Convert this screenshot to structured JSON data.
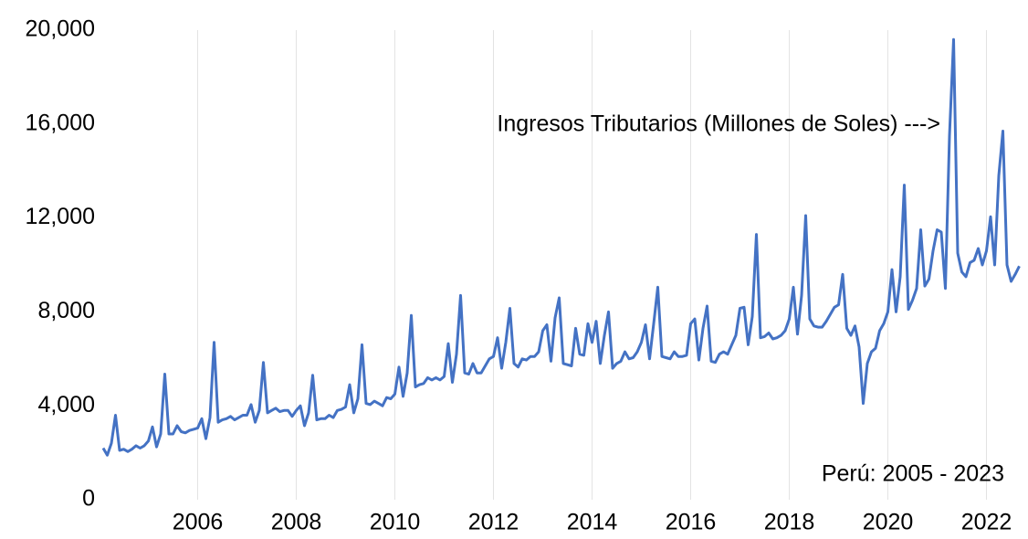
{
  "chart_data": {
    "type": "line",
    "annotations": [
      "Ingresos Tributarios (Millones de Soles) --->",
      "Perú: 2005 - 2023"
    ],
    "categories": [
      null,
      null,
      null,
      null,
      null,
      null,
      null,
      null,
      null,
      null,
      null,
      null,
      null,
      null,
      null,
      null,
      null,
      null,
      null,
      null,
      null,
      null,
      null,
      "2006",
      null,
      null,
      null,
      null,
      null,
      null,
      null,
      null,
      null,
      null,
      null,
      null,
      null,
      null,
      null,
      null,
      null,
      null,
      null,
      null,
      null,
      null,
      null,
      "2008",
      null,
      null,
      null,
      null,
      null,
      null,
      null,
      null,
      null,
      null,
      null,
      null,
      null,
      null,
      null,
      null,
      null,
      null,
      null,
      null,
      null,
      null,
      null,
      "2010",
      null,
      null,
      null,
      null,
      null,
      null,
      null,
      null,
      null,
      null,
      null,
      null,
      null,
      null,
      null,
      null,
      null,
      null,
      null,
      null,
      null,
      null,
      null,
      "2012",
      null,
      null,
      null,
      null,
      null,
      null,
      null,
      null,
      null,
      null,
      null,
      null,
      null,
      null,
      null,
      null,
      null,
      null,
      null,
      null,
      null,
      null,
      null,
      "2014",
      null,
      null,
      null,
      null,
      null,
      null,
      null,
      null,
      null,
      null,
      null,
      null,
      null,
      null,
      null,
      null,
      null,
      null,
      null,
      null,
      null,
      null,
      null,
      "2016",
      null,
      null,
      null,
      null,
      null,
      null,
      null,
      null,
      null,
      null,
      null,
      null,
      null,
      null,
      null,
      null,
      null,
      null,
      null,
      null,
      null,
      null,
      null,
      "2018",
      null,
      null,
      null,
      null,
      null,
      null,
      null,
      null,
      null,
      null,
      null,
      null,
      null,
      null,
      null,
      null,
      null,
      null,
      null,
      null,
      null,
      null,
      null,
      "2020",
      null,
      null,
      null,
      null,
      null,
      null,
      null,
      null,
      null,
      null,
      null,
      null,
      null,
      null,
      null,
      null,
      null,
      null,
      null,
      null,
      null,
      null,
      null,
      "2022",
      null,
      null,
      null,
      null,
      null,
      null,
      null,
      null
    ],
    "values": [
      2200,
      1900,
      2400,
      3600,
      2100,
      2150,
      2050,
      2150,
      2300,
      2200,
      2300,
      2500,
      3100,
      2250,
      2800,
      5350,
      2800,
      2800,
      3150,
      2900,
      2850,
      2950,
      3000,
      3050,
      3450,
      2600,
      3500,
      6700,
      3300,
      3400,
      3450,
      3550,
      3400,
      3500,
      3600,
      3600,
      4050,
      3300,
      3800,
      5850,
      3700,
      3800,
      3900,
      3750,
      3800,
      3800,
      3550,
      3800,
      4000,
      3150,
      3700,
      5300,
      3400,
      3450,
      3450,
      3600,
      3500,
      3800,
      3850,
      3950,
      4900,
      3700,
      4300,
      6600,
      4100,
      4050,
      4200,
      4100,
      4000,
      4350,
      4300,
      4500,
      5650,
      4400,
      5400,
      7850,
      4800,
      4900,
      4950,
      5200,
      5100,
      5200,
      5100,
      5250,
      6650,
      5000,
      6200,
      8700,
      5400,
      5350,
      5800,
      5400,
      5400,
      5700,
      6000,
      6100,
      6900,
      5600,
      6700,
      8150,
      5800,
      5650,
      6000,
      5950,
      6100,
      6100,
      6300,
      7200,
      7450,
      5900,
      7750,
      8600,
      5800,
      5750,
      5700,
      7300,
      6200,
      6150,
      7500,
      6700,
      7600,
      5800,
      7000,
      8000,
      5600,
      5800,
      5900,
      6300,
      6000,
      6050,
      6300,
      6700,
      7450,
      6000,
      7500,
      9050,
      6100,
      6050,
      6000,
      6300,
      6100,
      6100,
      6150,
      7500,
      7700,
      5950,
      7300,
      8250,
      5900,
      5850,
      6200,
      6300,
      6200,
      6600,
      7000,
      8150,
      8200,
      6600,
      7800,
      11300,
      6900,
      6950,
      7100,
      6850,
      6900,
      7000,
      7200,
      7700,
      9050,
      7050,
      8700,
      12100,
      7700,
      7400,
      7350,
      7350,
      7600,
      7900,
      8200,
      8300,
      9600,
      7300,
      7000,
      7400,
      6500,
      4100,
      5800,
      6300,
      6450,
      7200,
      7500,
      8000,
      9800,
      8000,
      9500,
      13400,
      8100,
      8500,
      9000,
      11500,
      9100,
      9400,
      10600,
      11500,
      11400,
      9000,
      15500,
      19600,
      10500,
      9700,
      9500,
      10100,
      10200,
      10700,
      10000,
      10600,
      12050,
      10000,
      13800,
      15700,
      10000,
      9300,
      9600,
      9950
    ],
    "color": "#4472c4",
    "ylim": [
      0,
      20000
    ],
    "yticks": [
      0,
      {
        "value": 4000,
        "label": "4,000"
      },
      {
        "value": 8000,
        "label": "8,000"
      },
      {
        "value": 12000,
        "label": "12,000"
      },
      {
        "value": 16000,
        "label": "16,000"
      },
      {
        "value": 20000,
        "label": "20,000"
      }
    ],
    "grid": true
  }
}
